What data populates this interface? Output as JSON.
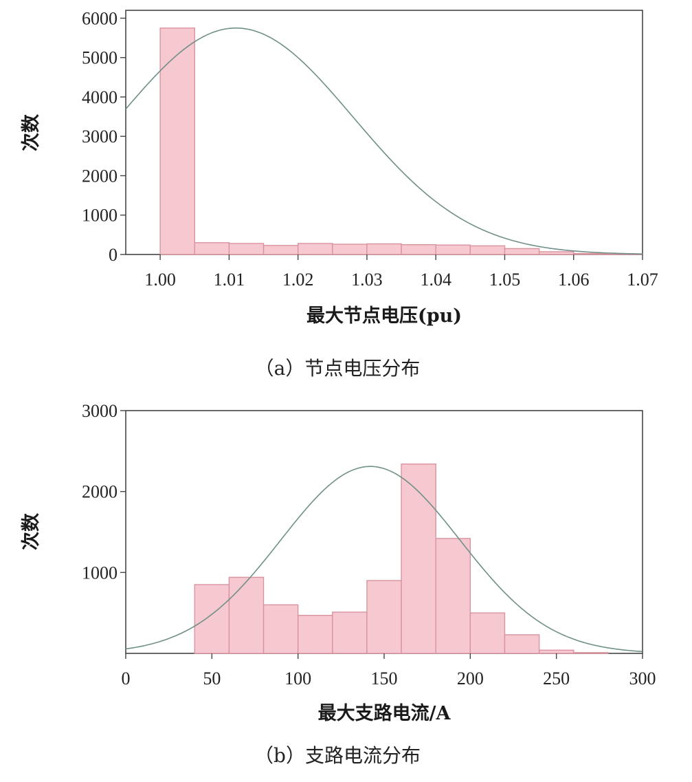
{
  "chart_data": [
    {
      "type": "bar",
      "subtype": "histogram-with-normal-fit",
      "caption": "（a）节点电压分布",
      "xlabel": "最大节点电压(pu)",
      "ylabel": "次数",
      "xlim": [
        0.995,
        1.07
      ],
      "ylim": [
        0,
        6200
      ],
      "x_ticks": [
        "1.00",
        "1.01",
        "1.02",
        "1.03",
        "1.04",
        "1.05",
        "1.06",
        "1.07"
      ],
      "y_ticks": [
        "0",
        "1000",
        "2000",
        "3000",
        "4000",
        "5000",
        "6000"
      ],
      "bin_width": 0.005,
      "bins": [
        {
          "start": 1.0,
          "count": 5750
        },
        {
          "start": 1.005,
          "count": 300
        },
        {
          "start": 1.01,
          "count": 280
        },
        {
          "start": 1.015,
          "count": 230
        },
        {
          "start": 1.02,
          "count": 280
        },
        {
          "start": 1.025,
          "count": 260
        },
        {
          "start": 1.03,
          "count": 270
        },
        {
          "start": 1.035,
          "count": 250
        },
        {
          "start": 1.04,
          "count": 240
        },
        {
          "start": 1.045,
          "count": 220
        },
        {
          "start": 1.05,
          "count": 150
        },
        {
          "start": 1.055,
          "count": 70
        },
        {
          "start": 1.06,
          "count": 25
        },
        {
          "start": 1.065,
          "count": 10
        }
      ],
      "fit_curve": {
        "type": "normal",
        "mean": 1.011,
        "std": 0.017,
        "peak": 5750
      },
      "colors": {
        "bar_fill": "#f6c8cf",
        "bar_stroke": "#d9939f",
        "curve": "#6f8f88"
      },
      "grid": false
    },
    {
      "type": "bar",
      "subtype": "histogram-with-normal-fit",
      "caption": "（b）支路电流分布",
      "xlabel": "最大支路电流/A",
      "ylabel": "次数",
      "xlim": [
        0,
        300
      ],
      "ylim": [
        0,
        3000
      ],
      "x_ticks": [
        "0",
        "50",
        "100",
        "150",
        "200",
        "250",
        "300"
      ],
      "y_ticks": [
        "1000",
        "2000",
        "3000"
      ],
      "bin_width": 20,
      "bins": [
        {
          "start": 40,
          "count": 850
        },
        {
          "start": 60,
          "count": 940
        },
        {
          "start": 80,
          "count": 600
        },
        {
          "start": 100,
          "count": 470
        },
        {
          "start": 120,
          "count": 510
        },
        {
          "start": 140,
          "count": 900
        },
        {
          "start": 160,
          "count": 2340
        },
        {
          "start": 180,
          "count": 1420
        },
        {
          "start": 200,
          "count": 500
        },
        {
          "start": 220,
          "count": 230
        },
        {
          "start": 240,
          "count": 40
        },
        {
          "start": 260,
          "count": 10
        }
      ],
      "fit_curve": {
        "type": "normal",
        "mean": 142,
        "std": 52,
        "peak": 2310
      },
      "colors": {
        "bar_fill": "#f6c8cf",
        "bar_stroke": "#d9939f",
        "curve": "#6f8f88"
      },
      "grid": false
    }
  ]
}
